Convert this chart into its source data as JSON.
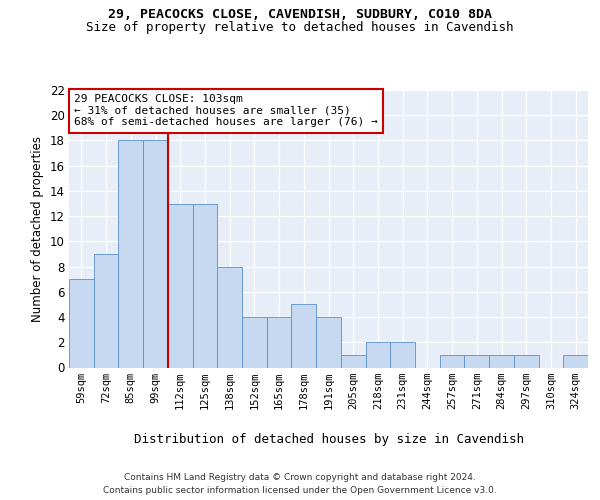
{
  "title1": "29, PEACOCKS CLOSE, CAVENDISH, SUDBURY, CO10 8DA",
  "title2": "Size of property relative to detached houses in Cavendish",
  "xlabel": "Distribution of detached houses by size in Cavendish",
  "ylabel": "Number of detached properties",
  "categories": [
    "59sqm",
    "72sqm",
    "85sqm",
    "99sqm",
    "112sqm",
    "125sqm",
    "138sqm",
    "152sqm",
    "165sqm",
    "178sqm",
    "191sqm",
    "205sqm",
    "218sqm",
    "231sqm",
    "244sqm",
    "257sqm",
    "271sqm",
    "284sqm",
    "297sqm",
    "310sqm",
    "324sqm"
  ],
  "values": [
    7,
    9,
    18,
    18,
    13,
    13,
    8,
    4,
    4,
    5,
    4,
    1,
    2,
    2,
    0,
    1,
    1,
    1,
    1,
    0,
    1
  ],
  "bar_color": "#c6d9f0",
  "bar_edge_color": "#5b8fc9",
  "highlight_line_color": "#cc0000",
  "annotation_text": "29 PEACOCKS CLOSE: 103sqm\n← 31% of detached houses are smaller (35)\n68% of semi-detached houses are larger (76) →",
  "annotation_box_color": "#ffffff",
  "annotation_box_edge": "#cc0000",
  "footer1": "Contains HM Land Registry data © Crown copyright and database right 2024.",
  "footer2": "Contains public sector information licensed under the Open Government Licence v3.0.",
  "ylim": [
    0,
    22
  ],
  "yticks": [
    0,
    2,
    4,
    6,
    8,
    10,
    12,
    14,
    16,
    18,
    20,
    22
  ],
  "bg_color": "#e8eef7",
  "fig_bg": "#ffffff"
}
